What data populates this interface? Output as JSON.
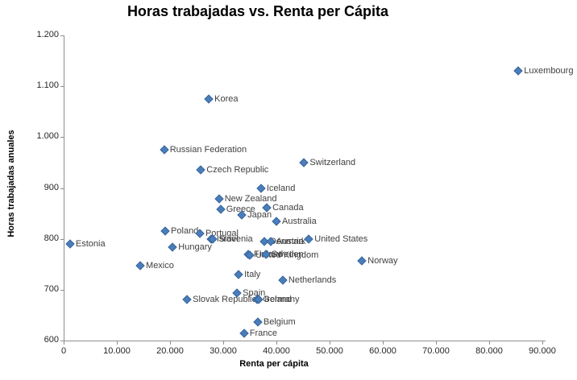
{
  "chart_data": {
    "type": "scatter",
    "title": "Horas trabajadas vs. Renta per Cápita",
    "xlabel": "Renta per cápita",
    "ylabel": "Horas trabajadas  anuales",
    "xlim": [
      0,
      90000
    ],
    "ylim": [
      600,
      1200
    ],
    "grid": false,
    "legend": false,
    "marker_color": "#4a7ebb",
    "marker_border": "#3a669c",
    "label_color": "#404040",
    "axis_color": "#8e8e8e",
    "x_ticks": [
      {
        "v": 0,
        "label": "0"
      },
      {
        "v": 10000,
        "label": "10.000"
      },
      {
        "v": 20000,
        "label": "20.000"
      },
      {
        "v": 30000,
        "label": "30.000"
      },
      {
        "v": 40000,
        "label": "40.000"
      },
      {
        "v": 50000,
        "label": "50.000"
      },
      {
        "v": 60000,
        "label": "60.000"
      },
      {
        "v": 70000,
        "label": "70.000"
      },
      {
        "v": 80000,
        "label": "80.000"
      },
      {
        "v": 90000,
        "label": "90.000"
      }
    ],
    "y_ticks": [
      {
        "v": 600,
        "label": "600"
      },
      {
        "v": 700,
        "label": "700"
      },
      {
        "v": 800,
        "label": "800"
      },
      {
        "v": 900,
        "label": "900"
      },
      {
        "v": 1000,
        "label": "1.000"
      },
      {
        "v": 1100,
        "label": "1.100"
      },
      {
        "v": 1200,
        "label": "1.200"
      }
    ],
    "points": [
      {
        "name": "Luxembourg",
        "x": 85500,
        "y": 1130
      },
      {
        "name": "Korea",
        "x": 27300,
        "y": 1075
      },
      {
        "name": "Russian Federation",
        "x": 18900,
        "y": 975
      },
      {
        "name": "Switzerland",
        "x": 45200,
        "y": 950
      },
      {
        "name": "Czech Republic",
        "x": 25800,
        "y": 935
      },
      {
        "name": "Iceland",
        "x": 37100,
        "y": 900
      },
      {
        "name": "New Zealand",
        "x": 29200,
        "y": 878
      },
      {
        "name": "Canada",
        "x": 38200,
        "y": 862
      },
      {
        "name": "Greece",
        "x": 29500,
        "y": 858
      },
      {
        "name": "Japan",
        "x": 33500,
        "y": 847
      },
      {
        "name": "Australia",
        "x": 40000,
        "y": 835
      },
      {
        "name": "Poland",
        "x": 19100,
        "y": 815
      },
      {
        "name": "Portugal",
        "x": 25600,
        "y": 810
      },
      {
        "name": "Israel",
        "x": 27700,
        "y": 800
      },
      {
        "name": "Slovenia",
        "x": 28100,
        "y": 799
      },
      {
        "name": "Denmark",
        "x": 37700,
        "y": 795
      },
      {
        "name": "Austria",
        "x": 38900,
        "y": 795
      },
      {
        "name": "United States",
        "x": 46100,
        "y": 800
      },
      {
        "name": "Estonia",
        "x": 1200,
        "y": 790
      },
      {
        "name": "Hungary",
        "x": 20500,
        "y": 783
      },
      {
        "name": "Finland",
        "x": 34700,
        "y": 769
      },
      {
        "name": "United Kingdom",
        "x": 35000,
        "y": 768
      },
      {
        "name": "Sweden",
        "x": 38000,
        "y": 770
      },
      {
        "name": "Norway",
        "x": 56100,
        "y": 757
      },
      {
        "name": "Mexico",
        "x": 14400,
        "y": 748
      },
      {
        "name": "Italy",
        "x": 32900,
        "y": 730
      },
      {
        "name": "Netherlands",
        "x": 41200,
        "y": 718
      },
      {
        "name": "Spain",
        "x": 32600,
        "y": 694
      },
      {
        "name": "Slovak Republic",
        "x": 23200,
        "y": 681
      },
      {
        "name": "Germany",
        "x": 36400,
        "y": 681
      },
      {
        "name": "Ireland",
        "x": 36700,
        "y": 680
      },
      {
        "name": "Belgium",
        "x": 36500,
        "y": 637
      },
      {
        "name": "France",
        "x": 33900,
        "y": 614
      }
    ]
  }
}
